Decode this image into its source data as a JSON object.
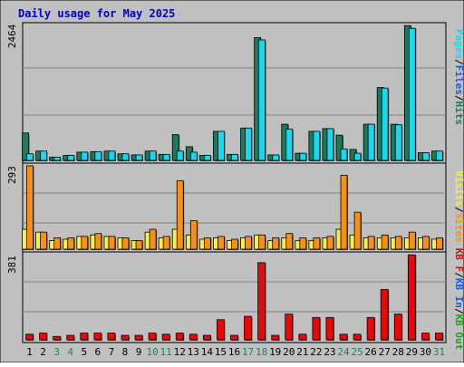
{
  "title": "Daily usage for May 2025",
  "colors": {
    "background": "#c0c0c0",
    "title": "#0000c0",
    "hits": "#1a7a5e",
    "files": "#18d8f0",
    "pages": "#18d8f0",
    "visits": "#f8f040",
    "sites": "#f89018",
    "kb": "#e80808",
    "weekend_label": "#208060",
    "weekday_label": "#000000"
  },
  "chart_data": [
    {
      "type": "bar",
      "panel": "top",
      "ylabel_max": "2464",
      "ylim": [
        0,
        2464
      ],
      "legend": [
        {
          "text": "Pages",
          "color": "#18d8f0"
        },
        {
          "text": "/",
          "color": "#000000"
        },
        {
          "text": "Files",
          "color": "#1060e0"
        },
        {
          "text": "/",
          "color": "#000000"
        },
        {
          "text": "Hits",
          "color": "#1a7a5e"
        }
      ],
      "categories": [
        "1",
        "2",
        "3",
        "4",
        "5",
        "6",
        "7",
        "8",
        "9",
        "10",
        "11",
        "12",
        "13",
        "14",
        "15",
        "16",
        "17",
        "18",
        "19",
        "20",
        "21",
        "22",
        "23",
        "24",
        "25",
        "26",
        "27",
        "28",
        "29",
        "30",
        "31"
      ],
      "series": [
        {
          "name": "Hits",
          "values": [
            500,
            170,
            60,
            90,
            150,
            160,
            170,
            120,
            100,
            170,
            110,
            470,
            250,
            90,
            530,
            110,
            590,
            2240,
            100,
            660,
            130,
            530,
            580,
            460,
            200,
            660,
            1330,
            660,
            2460,
            140,
            170
          ]
        },
        {
          "name": "Files",
          "values": [
            120,
            170,
            60,
            90,
            150,
            160,
            170,
            120,
            100,
            170,
            110,
            170,
            150,
            90,
            530,
            110,
            590,
            2200,
            100,
            570,
            130,
            530,
            580,
            210,
            130,
            660,
            1320,
            650,
            2410,
            140,
            170
          ]
        }
      ]
    },
    {
      "type": "bar",
      "panel": "middle",
      "ylabel_max": "293",
      "ylim": [
        0,
        293
      ],
      "legend": [
        {
          "text": "Visits",
          "color": "#f8f040"
        },
        {
          "text": "/",
          "color": "#000000"
        },
        {
          "text": "Sites",
          "color": "#f89018"
        }
      ],
      "categories": [
        "1",
        "2",
        "3",
        "4",
        "5",
        "6",
        "7",
        "8",
        "9",
        "10",
        "11",
        "12",
        "13",
        "14",
        "15",
        "16",
        "17",
        "18",
        "19",
        "20",
        "21",
        "22",
        "23",
        "24",
        "25",
        "26",
        "27",
        "28",
        "29",
        "30",
        "31"
      ],
      "series": [
        {
          "name": "Visits",
          "values": [
            70,
            60,
            30,
            35,
            45,
            50,
            45,
            40,
            30,
            60,
            40,
            70,
            50,
            35,
            40,
            30,
            40,
            50,
            30,
            40,
            30,
            30,
            40,
            70,
            50,
            40,
            40,
            40,
            40,
            40,
            35
          ]
        },
        {
          "name": "Sites",
          "values": [
            293,
            60,
            40,
            40,
            45,
            55,
            45,
            40,
            30,
            70,
            45,
            240,
            100,
            40,
            45,
            35,
            45,
            50,
            40,
            55,
            40,
            40,
            45,
            260,
            130,
            45,
            50,
            45,
            60,
            45,
            40
          ]
        }
      ]
    },
    {
      "type": "bar",
      "panel": "bottom",
      "ylabel_max": "381",
      "ylim": [
        0,
        381
      ],
      "legend": [
        {
          "text": "KB F",
          "color": "#e80808"
        },
        {
          "text": "/",
          "color": "#000000"
        },
        {
          "text": "KB In",
          "color": "#1060e0"
        },
        {
          "text": "/",
          "color": "#000000"
        },
        {
          "text": "KB Out",
          "color": "#20a020"
        }
      ],
      "categories": [
        "1",
        "2",
        "3",
        "4",
        "5",
        "6",
        "7",
        "8",
        "9",
        "10",
        "11",
        "12",
        "13",
        "14",
        "15",
        "16",
        "17",
        "18",
        "19",
        "20",
        "21",
        "22",
        "23",
        "24",
        "25",
        "26",
        "27",
        "28",
        "29",
        "30",
        "31"
      ],
      "series": [
        {
          "name": "KB F",
          "values": [
            25,
            30,
            15,
            20,
            30,
            30,
            30,
            20,
            20,
            30,
            25,
            30,
            25,
            20,
            90,
            20,
            105,
            345,
            20,
            115,
            25,
            100,
            100,
            25,
            25,
            100,
            225,
            115,
            380,
            30,
            30
          ]
        }
      ]
    }
  ],
  "weekend_days": [
    3,
    4,
    10,
    11,
    17,
    18,
    24,
    25,
    31
  ]
}
